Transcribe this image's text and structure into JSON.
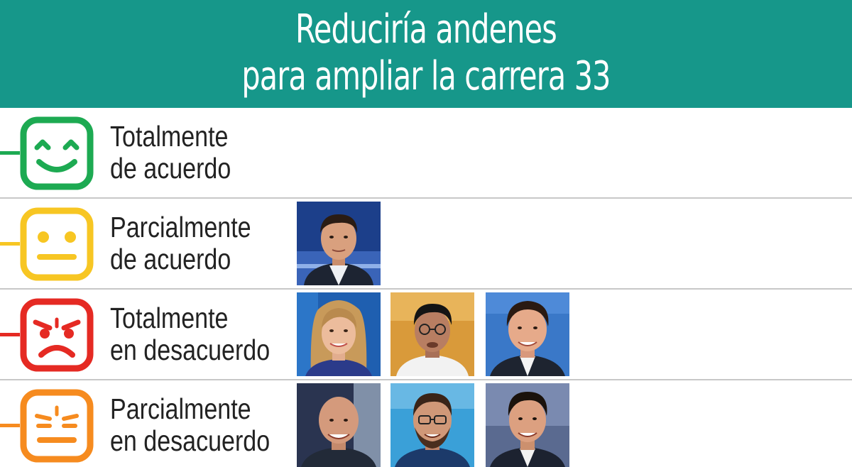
{
  "title": {
    "line1": "Reduciría andenes",
    "line2": "para ampliar la carrera 33"
  },
  "colors": {
    "header_bg": "#16978a",
    "green": "#1daa52",
    "yellow": "#f7c623",
    "red": "#e52a23",
    "orange": "#f68b1f"
  },
  "rows": [
    {
      "label_line1": "Totalmente",
      "label_line2": "de acuerdo",
      "face_icon": "happy-face-icon",
      "color": "#1daa52",
      "photos": []
    },
    {
      "label_line1": "Parcialmente",
      "label_line2": "de acuerdo",
      "face_icon": "neutral-face-icon",
      "color": "#f7c623",
      "photos": [
        "man-suit-blue-background"
      ]
    },
    {
      "label_line1": "Totalmente",
      "label_line2": "en desacuerdo",
      "face_icon": "angry-face-icon",
      "color": "#e52a23",
      "photos": [
        "woman-blonde",
        "man-glasses-dark-hair",
        "man-older-smiling"
      ]
    },
    {
      "label_line1": "Parcialmente",
      "label_line2": "en desacuerdo",
      "face_icon": "annoyed-face-icon",
      "color": "#f68b1f",
      "photos": [
        "man-bald-smiling",
        "man-glasses-beard",
        "man-dark-hair-smiling"
      ]
    }
  ]
}
